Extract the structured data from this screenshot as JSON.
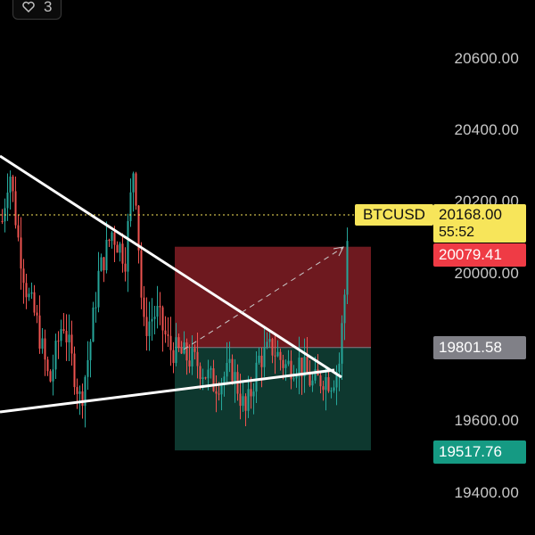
{
  "top_badge": {
    "icon": "heart-icon",
    "count": "3"
  },
  "symbol": "BTCUSD",
  "price_axis": [
    "20600.00",
    "20400.00",
    "20200.00",
    "20000.00",
    "19600.00",
    "19400.00"
  ],
  "current_price": "20168.00",
  "countdown": "55:52",
  "stop_loss_price": "20079.41",
  "entry_price": "19801.58",
  "take_profit_price": "19517.76",
  "colors": {
    "up": "#26a69a",
    "down": "#ef5350",
    "stop_zone": "#7a1c22",
    "profit_zone": "#0f3b32",
    "yellow": "#f7e55a",
    "entry_tag": "#808087",
    "stop_tag": "#ef3b45",
    "profit_tag": "#159a83"
  },
  "chart_data": {
    "type": "candlestick",
    "ylim": [
      19340,
      20690
    ],
    "note_levels": {
      "current": 20168.0,
      "stop": 20079.41,
      "entry": 19801.58,
      "target": 19517.76
    }
  }
}
